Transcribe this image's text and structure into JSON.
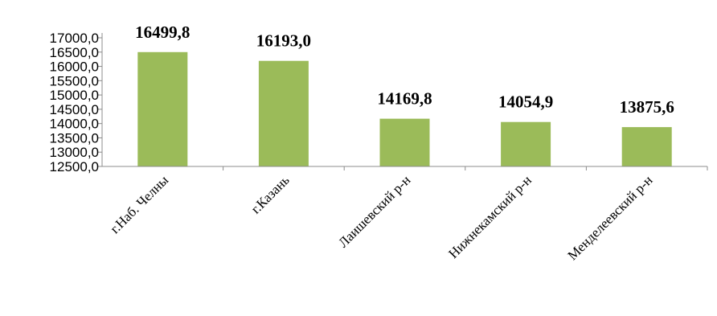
{
  "chart_data": {
    "type": "bar",
    "categories": [
      "г.Наб. Челны",
      "г.Казань",
      "Лаишевский р-н",
      "Нижнекамский р-н",
      "Менделеевский р-н"
    ],
    "values": [
      16499.8,
      16193.0,
      14169.8,
      14054.9,
      13875.6
    ],
    "data_labels": [
      "16499,8",
      "16193,0",
      "14169,8",
      "14054,9",
      "13875,6"
    ],
    "y_ticks": [
      {
        "value": 12500,
        "label": "12500,0"
      },
      {
        "value": 13000,
        "label": "13000,0"
      },
      {
        "value": 13500,
        "label": "13500,0"
      },
      {
        "value": 14000,
        "label": "14000,0"
      },
      {
        "value": 14500,
        "label": "14500,0"
      },
      {
        "value": 15000,
        "label": "15000,0"
      },
      {
        "value": 15500,
        "label": "15500,0"
      },
      {
        "value": 16000,
        "label": "16000,0"
      },
      {
        "value": 16500,
        "label": "16500,0"
      },
      {
        "value": 17000,
        "label": "17000,0"
      }
    ],
    "ylim": [
      12500,
      17000
    ],
    "title": "",
    "xlabel": "",
    "ylabel": "",
    "grid": false,
    "bar_color": "#9bbb59"
  }
}
